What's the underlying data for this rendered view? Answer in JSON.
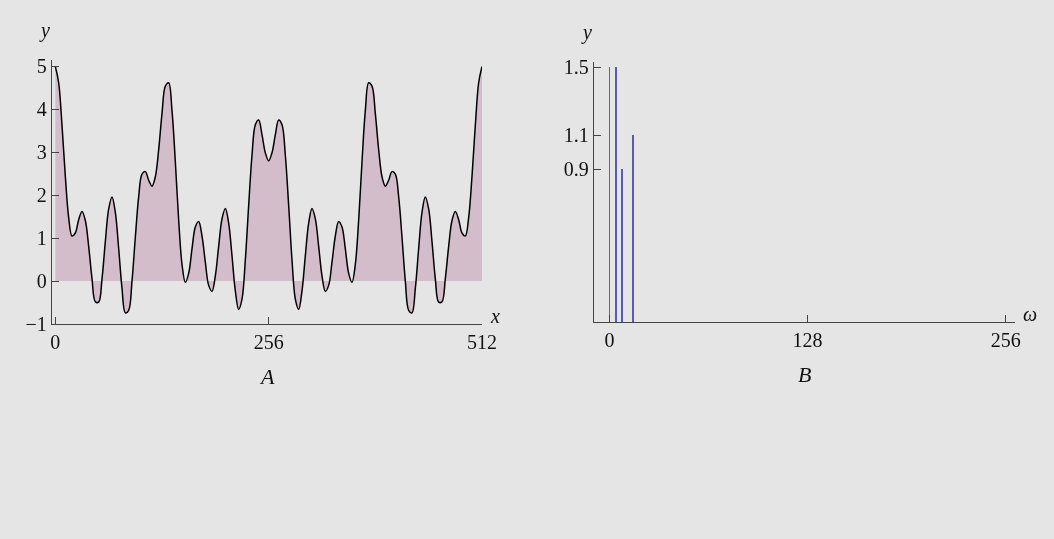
{
  "chart_data": [
    {
      "type": "area",
      "title": "A",
      "xlabel": "x",
      "ylabel": "y",
      "color": "#d4bdcb",
      "x": [
        0,
        4,
        8,
        12,
        16,
        20,
        24,
        28,
        32,
        36,
        40,
        44,
        48,
        52,
        56,
        60,
        64,
        68,
        72,
        76,
        80,
        84,
        88,
        92,
        96,
        100,
        104,
        108,
        112,
        116,
        120,
        124,
        128,
        132,
        136,
        140,
        144,
        148,
        152,
        156,
        160,
        164,
        168,
        172,
        176,
        180,
        184,
        188,
        192,
        196,
        200,
        204,
        208,
        212,
        216,
        220,
        224,
        228,
        232,
        236,
        240,
        244,
        248,
        252,
        256,
        260,
        264,
        268,
        272,
        276,
        280,
        284,
        288,
        292,
        296,
        300,
        304,
        308,
        312,
        316,
        320,
        324,
        328,
        332,
        336,
        340,
        344,
        348,
        352,
        356,
        360,
        364,
        368,
        372,
        376,
        380,
        384,
        388,
        392,
        396,
        400,
        404,
        408,
        412,
        416,
        420,
        424,
        428,
        432,
        436,
        440,
        444,
        448,
        452,
        456,
        460,
        464,
        468,
        472,
        476,
        480,
        484,
        488,
        492,
        496,
        500,
        504,
        508,
        512
      ],
      "values": [
        5,
        4.62,
        3.63,
        2.44,
        1.48,
        1.05,
        1.12,
        1.43,
        1.62,
        1.41,
        0.81,
        0.06,
        -0.48,
        -0.49,
        0.05,
        0.92,
        1.68,
        1.96,
        1.6,
        0.76,
        -0.17,
        -0.74,
        -0.68,
        0,
        1.02,
        1.96,
        2.49,
        2.55,
        2.35,
        2.21,
        2.43,
        3.06,
        3.9,
        4.54,
        4.62,
        3.97,
        2.78,
        1.42,
        0.39,
        -0.03,
        0.18,
        0.75,
        1.26,
        1.39,
        1.05,
        0.44,
        -0.1,
        -0.24,
        0.12,
        0.81,
        1.45,
        1.69,
        1.35,
        0.59,
        -0.23,
        -0.66,
        -0.42,
        0.49,
        1.76,
        2.93,
        3.64,
        3.75,
        3.41,
        2.99,
        2.8,
        2.99,
        3.41,
        3.75,
        3.64,
        2.93,
        1.76,
        0.49,
        -0.42,
        -0.66,
        -0.23,
        0.59,
        1.35,
        1.69,
        1.45,
        0.81,
        0.12,
        -0.24,
        -0.1,
        0.44,
        1.05,
        1.39,
        1.26,
        0.75,
        0.18,
        -0.03,
        0.39,
        1.42,
        2.78,
        3.97,
        4.62,
        4.54,
        3.9,
        3.06,
        2.43,
        2.21,
        2.35,
        2.55,
        2.49,
        1.96,
        1.02,
        0,
        -0.68,
        -0.74,
        -0.17,
        0.76,
        1.6,
        1.96,
        1.68,
        0.92,
        0.05,
        -0.49,
        -0.48,
        0.06,
        0.81,
        1.41,
        1.62,
        1.43,
        1.12,
        1.05,
        1.48,
        2.44,
        3.63,
        4.62,
        5
      ],
      "xlim": [
        -4,
        512
      ],
      "ylim": [
        -1,
        5.15
      ],
      "xticks": [
        0,
        256,
        512
      ],
      "yticks": [
        {
          "value": -1,
          "label": "−1"
        },
        0,
        1,
        2,
        3,
        4,
        5
      ]
    },
    {
      "type": "bar",
      "title": "B",
      "xlabel": "ω",
      "ylabel": "y",
      "x": [
        0,
        4,
        8,
        15
      ],
      "values": [
        1.5,
        1.5,
        0.9,
        1.1
      ],
      "colors": [
        "#a8486f",
        "#5a5ab4",
        "#5a5ab4",
        "#5a5ab4"
      ],
      "xlim": [
        -10,
        262
      ],
      "ylim": [
        0,
        1.53
      ],
      "xticks": [
        0,
        128,
        256
      ],
      "yticks": [
        0.9,
        1.1,
        1.5
      ]
    }
  ]
}
